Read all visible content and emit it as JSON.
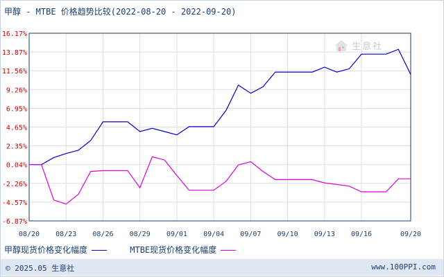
{
  "title": "甲醇 - MTBE 价格趋势比较(2022-08-20 - 2022-09-20)",
  "watermark": "生意社",
  "footer": {
    "copyright": "© 2025.05 生意社",
    "site": "www.100PPI.com"
  },
  "colors": {
    "series_1": "#0000cc",
    "series_2": "#dd00dd",
    "ytick": "#d00000",
    "grid": "#dddddd",
    "axis": "#1a3c6e"
  },
  "chart_data": {
    "type": "line",
    "title": "甲醇 - MTBE 价格趋势比较(2022-08-20 - 2022-09-20)",
    "xlabel": "",
    "ylabel": "",
    "ylim": [
      -6.87,
      16.17
    ],
    "yticks": [
      "16.17%",
      "13.87%",
      "11.56%",
      "9.26%",
      "6.95%",
      "4.65%",
      "2.35%",
      "0.04%",
      "-2.26%",
      "-4.57%",
      "-6.87%"
    ],
    "xtick_labels": [
      "08/20",
      "08/23",
      "08/26",
      "08/29",
      "09/01",
      "09/04",
      "09/07",
      "09/10",
      "09/13",
      "09/16",
      "09/20"
    ],
    "grid": true,
    "legend_position": "bottom",
    "x": [
      "08/20",
      "08/21",
      "08/22",
      "08/23",
      "08/24",
      "08/25",
      "08/26",
      "08/27",
      "08/28",
      "08/29",
      "08/30",
      "08/31",
      "09/01",
      "09/02",
      "09/03",
      "09/04",
      "09/05",
      "09/06",
      "09/07",
      "09/08",
      "09/09",
      "09/10",
      "09/11",
      "09/12",
      "09/13",
      "09/14",
      "09/15",
      "09/16",
      "09/17",
      "09/18",
      "09/19",
      "09/20"
    ],
    "series": [
      {
        "name": "甲醇现货价格变化幅度",
        "values": [
          0.04,
          0.04,
          0.9,
          1.4,
          1.8,
          3.0,
          5.3,
          5.3,
          5.3,
          4.1,
          4.5,
          4.1,
          3.7,
          4.7,
          4.7,
          4.7,
          6.7,
          9.8,
          8.8,
          9.6,
          11.4,
          11.4,
          11.4,
          11.4,
          12.0,
          11.4,
          11.8,
          13.6,
          13.6,
          13.6,
          14.2,
          11.1
        ]
      },
      {
        "name": "MTBE现货价格变化幅度",
        "values": [
          0.04,
          0.04,
          -4.3,
          -4.8,
          -3.6,
          -0.8,
          -0.7,
          -0.7,
          -0.7,
          -2.8,
          1.0,
          0.6,
          -1.3,
          -3.1,
          -3.1,
          -3.1,
          -2.0,
          0.0,
          0.4,
          -0.8,
          -1.8,
          -1.8,
          -1.8,
          -1.8,
          -2.2,
          -2.4,
          -2.6,
          -3.3,
          -3.3,
          -3.3,
          -1.7,
          -1.7
        ]
      }
    ]
  }
}
